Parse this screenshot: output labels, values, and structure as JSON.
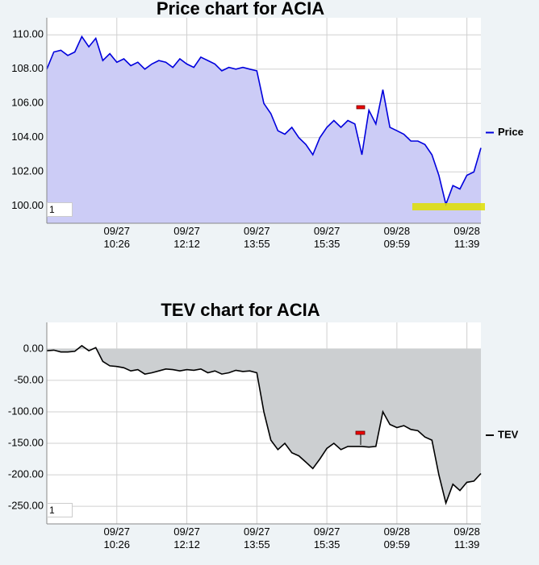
{
  "chart_data": [
    {
      "type": "line",
      "title": "Price chart for ACIA",
      "categories": [
        null,
        null,
        null,
        null,
        null,
        null,
        null,
        null,
        null,
        null,
        "09/27 10:26",
        null,
        null,
        null,
        null,
        null,
        null,
        null,
        null,
        null,
        "09/27 12:12",
        null,
        null,
        null,
        null,
        null,
        null,
        null,
        null,
        null,
        "09/27 13:55",
        null,
        null,
        null,
        null,
        null,
        null,
        null,
        null,
        null,
        "09/27 15:35",
        null,
        null,
        null,
        null,
        null,
        null,
        null,
        null,
        null,
        "09/28 09:59",
        null,
        null,
        null,
        null,
        null,
        null,
        null,
        null,
        null,
        "09/28 11:39",
        null,
        null
      ],
      "series": [
        {
          "name": "Price",
          "color": "#0000dd",
          "fill_color": "#ccccf6",
          "values": [
            108,
            109,
            109.1,
            108.8,
            109,
            109.9,
            109.3,
            109.8,
            108.5,
            108.9,
            108.4,
            108.6,
            108.2,
            108.4,
            108,
            108.3,
            108.5,
            108.4,
            108.1,
            108.6,
            108.3,
            108.1,
            108.7,
            108.5,
            108.3,
            107.9,
            108.1,
            108,
            108.1,
            108,
            107.9,
            106,
            105.4,
            104.4,
            104.2,
            104.6,
            104,
            103.6,
            103,
            104,
            104.6,
            105,
            104.6,
            105,
            104.8,
            103,
            105.6,
            104.8,
            106.8,
            104.6,
            104.4,
            104.2,
            103.8,
            103.8,
            103.6,
            103,
            101.8,
            100.1,
            101.2,
            101,
            101.8,
            102,
            103.4
          ]
        }
      ],
      "ylim": [
        99,
        111
      ],
      "yticks": [
        {
          "value": 100,
          "label": "100.00"
        },
        {
          "value": 102,
          "label": "102.00"
        },
        {
          "value": 104,
          "label": "104.00"
        },
        {
          "value": 106,
          "label": "106.00"
        },
        {
          "value": 108,
          "label": "108.00"
        },
        {
          "value": 110,
          "label": "110.00"
        }
      ],
      "grid": true,
      "legend": "right",
      "input_value": "1"
    },
    {
      "type": "line",
      "title": "TEV chart for ACIA",
      "categories": [
        null,
        null,
        null,
        null,
        null,
        null,
        null,
        null,
        null,
        null,
        "09/27 10:26",
        null,
        null,
        null,
        null,
        null,
        null,
        null,
        null,
        null,
        "09/27 12:12",
        null,
        null,
        null,
        null,
        null,
        null,
        null,
        null,
        null,
        "09/27 13:55",
        null,
        null,
        null,
        null,
        null,
        null,
        null,
        null,
        null,
        "09/27 15:35",
        null,
        null,
        null,
        null,
        null,
        null,
        null,
        null,
        null,
        "09/28 09:59",
        null,
        null,
        null,
        null,
        null,
        null,
        null,
        null,
        null,
        "09/28 11:39",
        null,
        null
      ],
      "series": [
        {
          "name": "TEV",
          "color": "#000000",
          "fill_color": "#cccfd1",
          "values": [
            -3,
            -2,
            -5,
            -5,
            -4,
            5,
            -3,
            2,
            -20,
            -27,
            -28,
            -30,
            -35,
            -33,
            -40,
            -38,
            -35,
            -32,
            -33,
            -35,
            -33,
            -34,
            -32,
            -38,
            -35,
            -40,
            -38,
            -34,
            -36,
            -35,
            -38,
            -100,
            -145,
            -160,
            -150,
            -165,
            -170,
            -180,
            -190,
            -175,
            -158,
            -150,
            -160,
            -155,
            -155,
            -155,
            -156,
            -155,
            -100,
            -120,
            -125,
            -122,
            -128,
            -130,
            -140,
            -145,
            -200,
            -245,
            -215,
            -225,
            -212,
            -210,
            -198
          ]
        }
      ],
      "ylim": [
        -278,
        42
      ],
      "yticks": [
        {
          "value": -250,
          "label": "-250.00"
        },
        {
          "value": -200,
          "label": "-200.00"
        },
        {
          "value": -150,
          "label": "-150.00"
        },
        {
          "value": -100,
          "label": "-100.00"
        },
        {
          "value": -50,
          "label": "-50.00"
        },
        {
          "value": 0,
          "label": "0.00"
        }
      ],
      "grid": true,
      "legend": "right",
      "input_value": "1"
    }
  ]
}
